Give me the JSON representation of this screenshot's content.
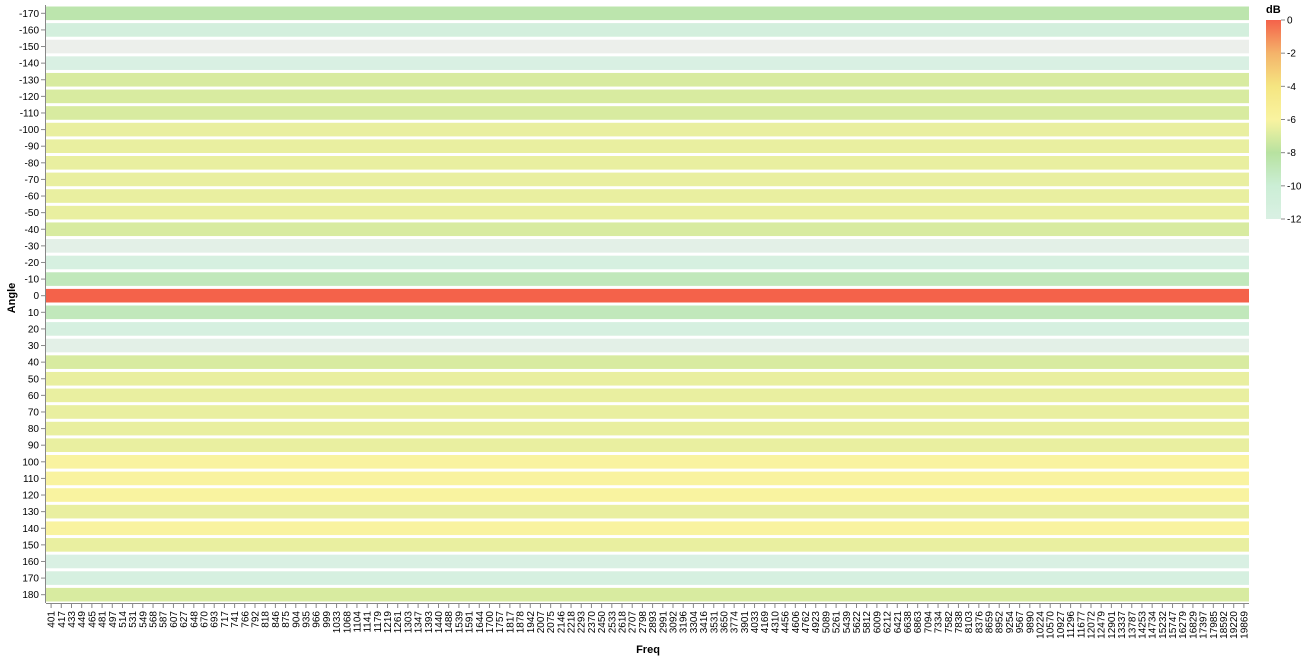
{
  "chart_data": {
    "type": "heatmap",
    "title": "",
    "xlabel": "Freq",
    "ylabel": "Angle",
    "angles": [
      -170,
      -160,
      -150,
      -140,
      -130,
      -120,
      -110,
      -100,
      -90,
      -80,
      -70,
      -60,
      -50,
      -40,
      -30,
      -20,
      -10,
      0,
      10,
      20,
      30,
      40,
      50,
      60,
      70,
      80,
      90,
      100,
      110,
      120,
      130,
      140,
      150,
      160,
      170,
      180
    ],
    "freq_tick_labels": [
      "401",
      "417",
      "433",
      "449",
      "465",
      "481",
      "497",
      "514",
      "531",
      "549",
      "568",
      "587",
      "607",
      "627",
      "648",
      "670",
      "693",
      "717",
      "741",
      "766",
      "792",
      "818",
      "846",
      "875",
      "904",
      "935",
      "966",
      "999",
      "1033",
      "1068",
      "1104",
      "1141",
      "1179",
      "1219",
      "1261",
      "1303",
      "1347",
      "1393",
      "1440",
      "1488",
      "1539",
      "1591",
      "1644",
      "1700",
      "1757",
      "1817",
      "1878",
      "1942",
      "2007",
      "2075",
      "2146",
      "2218",
      "2293",
      "2370",
      "2450",
      "2533",
      "2618",
      "2707",
      "2798",
      "2893",
      "2991",
      "3092",
      "3196",
      "3304",
      "3416",
      "3531",
      "3650",
      "3774",
      "3901",
      "4033",
      "4169",
      "4310",
      "4456",
      "4606",
      "4762",
      "4923",
      "5089",
      "5261",
      "5439",
      "5622",
      "5812",
      "6009",
      "6212",
      "6421",
      "6638",
      "6863",
      "7094",
      "7334",
      "7582",
      "7838",
      "8103",
      "8376",
      "8659",
      "8952",
      "9254",
      "9567",
      "9890",
      "10224",
      "10570",
      "10927",
      "11296",
      "11677",
      "12072",
      "12479",
      "12901",
      "13337",
      "13787",
      "14253",
      "14734",
      "15232",
      "15747",
      "16279",
      "16829",
      "17397",
      "17985",
      "18592",
      "19220",
      "19869"
    ],
    "series_db": [
      {
        "angle": -170,
        "db": -8.5
      },
      {
        "angle": -160,
        "db": -11.2
      },
      {
        "angle": -150,
        "db": -13.0
      },
      {
        "angle": -140,
        "db": -12.0
      },
      {
        "angle": -130,
        "db": -7.0
      },
      {
        "angle": -120,
        "db": -7.0
      },
      {
        "angle": -110,
        "db": -7.0
      },
      {
        "angle": -100,
        "db": -6.5
      },
      {
        "angle": -90,
        "db": -6.5
      },
      {
        "angle": -80,
        "db": -6.5
      },
      {
        "angle": -70,
        "db": -6.5
      },
      {
        "angle": -60,
        "db": -6.5
      },
      {
        "angle": -50,
        "db": -6.5
      },
      {
        "angle": -40,
        "db": -7.0
      },
      {
        "angle": -30,
        "db": -12.5
      },
      {
        "angle": -20,
        "db": -11.5
      },
      {
        "angle": -10,
        "db": -9.0
      },
      {
        "angle": 0,
        "db": 0.0
      },
      {
        "angle": 10,
        "db": -9.0
      },
      {
        "angle": 20,
        "db": -11.5
      },
      {
        "angle": 30,
        "db": -12.5
      },
      {
        "angle": 40,
        "db": -7.0
      },
      {
        "angle": 50,
        "db": -6.5
      },
      {
        "angle": 60,
        "db": -6.5
      },
      {
        "angle": 70,
        "db": -6.5
      },
      {
        "angle": 80,
        "db": -6.5
      },
      {
        "angle": 90,
        "db": -6.5
      },
      {
        "angle": 100,
        "db": -6.0
      },
      {
        "angle": 110,
        "db": -6.0
      },
      {
        "angle": 120,
        "db": -6.0
      },
      {
        "angle": 130,
        "db": -6.5
      },
      {
        "angle": 140,
        "db": -6.0
      },
      {
        "angle": 150,
        "db": -6.5
      },
      {
        "angle": 160,
        "db": -12.0
      },
      {
        "angle": 170,
        "db": -11.5
      },
      {
        "angle": 180,
        "db": -7.0
      }
    ],
    "color_scale": {
      "title": "dB",
      "domain": [
        -12,
        0
      ],
      "ticks": [
        0,
        -2,
        -4,
        -6,
        -8,
        -10,
        -12
      ],
      "stops": [
        {
          "db": -14,
          "color": "#ffeef2"
        },
        {
          "db": -12,
          "color": "#d9f0e3"
        },
        {
          "db": -10,
          "color": "#cbeed5"
        },
        {
          "db": -8,
          "color": "#b7e2a0"
        },
        {
          "db": -6,
          "color": "#f9f3a0"
        },
        {
          "db": -4,
          "color": "#f5e581"
        },
        {
          "db": -2,
          "color": "#f4b36a"
        },
        {
          "db": 0,
          "color": "#f4624a"
        }
      ],
      "out_of_range_color": "#00ffff"
    }
  }
}
